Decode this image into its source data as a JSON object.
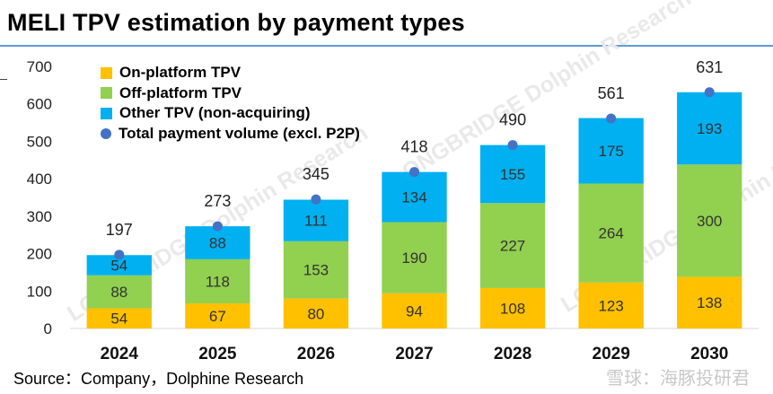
{
  "title": "MELI TPV estimation by payment types",
  "source": "Source：Company，Dolphine Research",
  "watermark": "雪球：海豚投研君",
  "background_watermark": "LONGBRIDGE Dolphin Research",
  "colors": {
    "on_platform": "#ffc000",
    "off_platform": "#92d050",
    "other": "#00b0f0",
    "total": "#4472c4",
    "rule": "#5b9bd5"
  },
  "chart_data": {
    "type": "bar",
    "stacked": true,
    "categories": [
      "2024",
      "2025",
      "2026",
      "2027",
      "2028",
      "2029",
      "2030"
    ],
    "series": [
      {
        "name": "On-platform TPV",
        "values": [
          54,
          67,
          80,
          94,
          108,
          123,
          138
        ]
      },
      {
        "name": "Off-platform TPV",
        "values": [
          88,
          118,
          153,
          190,
          227,
          264,
          300
        ]
      },
      {
        "name": "Other TPV (non-acquiring)",
        "values": [
          54,
          88,
          111,
          134,
          155,
          175,
          193
        ]
      }
    ],
    "total": {
      "name": "Total payment volume (excl. P2P)",
      "values": [
        197,
        273,
        345,
        418,
        490,
        561,
        631
      ]
    },
    "ylim": [
      0,
      700
    ],
    "yticks": [
      0,
      100,
      200,
      300,
      400,
      500,
      600,
      700
    ],
    "legend": "top-left",
    "grid": false
  }
}
